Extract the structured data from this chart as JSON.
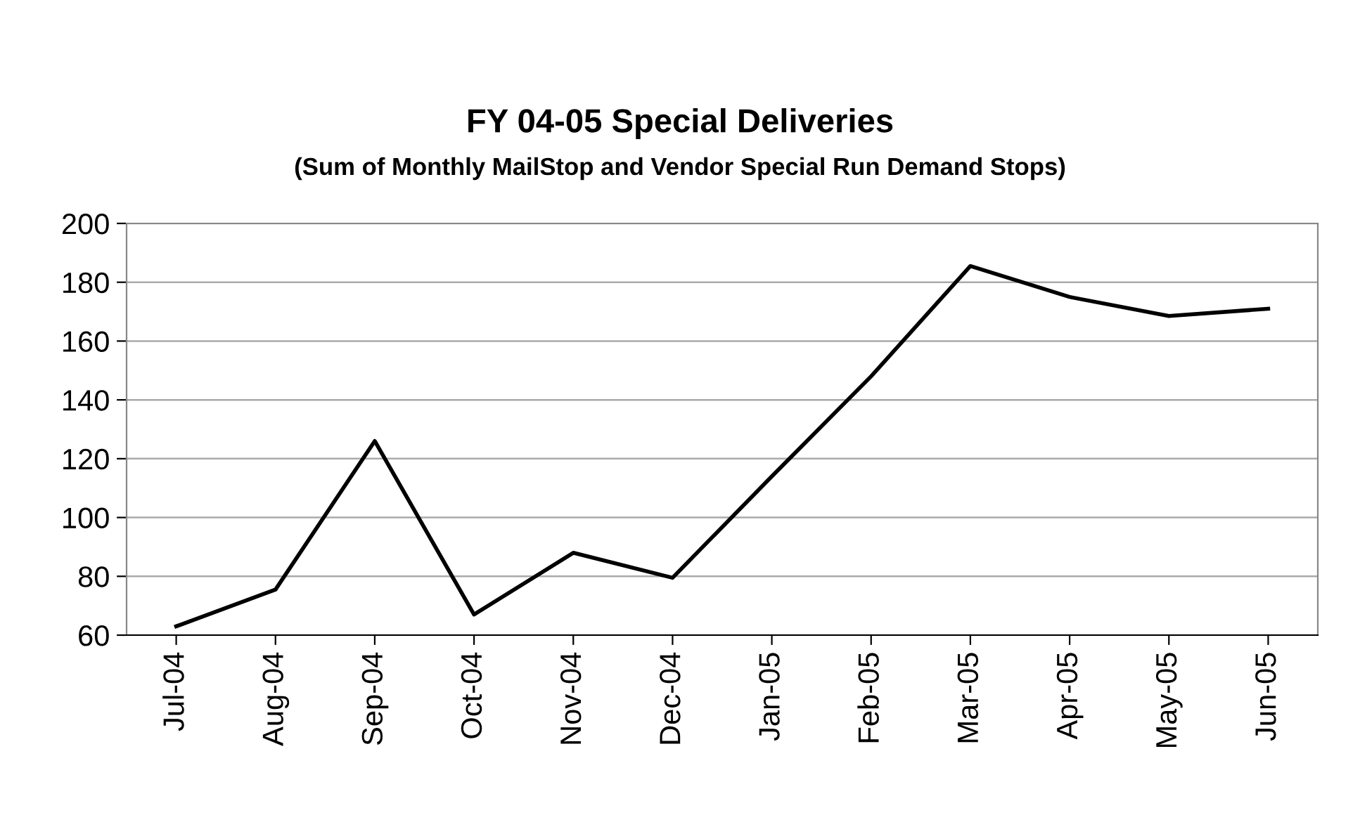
{
  "chart_data": {
    "type": "line",
    "title": "FY 04-05 Special Deliveries",
    "subtitle": "(Sum of Monthly MailStop and Vendor Special Run Demand Stops)",
    "categories": [
      "Jul-04",
      "Aug-04",
      "Sep-04",
      "Oct-04",
      "Nov-04",
      "Dec-04",
      "Jan-05",
      "Feb-05",
      "Mar-05",
      "Apr-05",
      "May-05",
      "Jun-05"
    ],
    "series": [
      {
        "color": "#000000",
        "values": [
          63,
          75.5,
          126,
          67,
          88,
          79.5,
          114,
          148,
          185.5,
          175,
          168.5,
          171
        ]
      }
    ],
    "ylim": [
      60,
      200
    ],
    "yticks": [
      60,
      80,
      100,
      120,
      140,
      160,
      180,
      200
    ],
    "grid": "y",
    "legend": false,
    "marker": "none",
    "line_style": "solid"
  }
}
